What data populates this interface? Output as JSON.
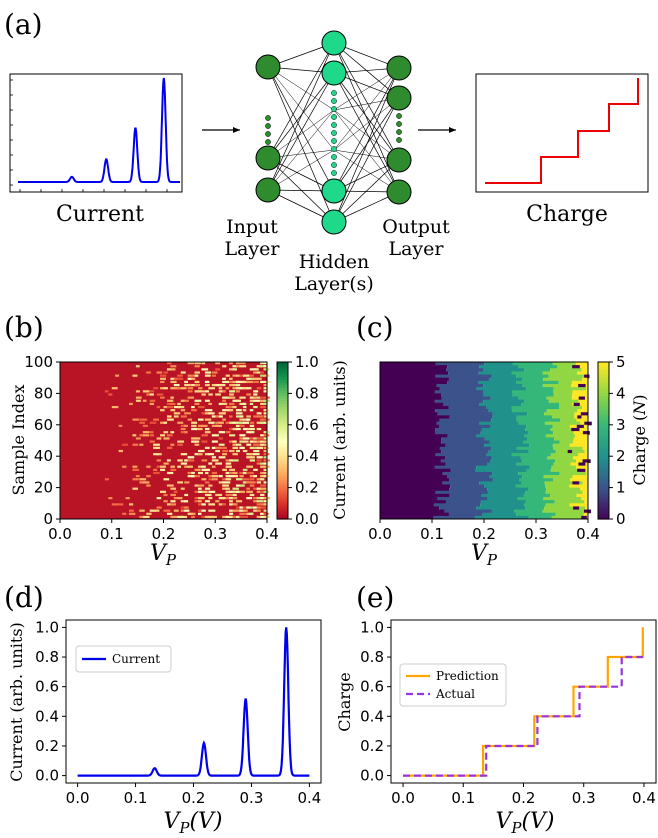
{
  "panel_a": {
    "tag": "(a)",
    "input_caption": "Current",
    "output_caption": "Charge",
    "input_layer_label": [
      "Input",
      "Layer"
    ],
    "hidden_layer_label": [
      "Hidden",
      "Layer(s)"
    ],
    "output_layer_label": [
      "Output",
      "Layer"
    ],
    "colors": {
      "current": "#0000ee",
      "charge": "#ee0000",
      "input_node": "#2e8b2e",
      "hidden_node": "#1fd98a"
    }
  },
  "chart_data": [
    {
      "id": "b",
      "tag": "(b)",
      "type": "heatmap",
      "xlabel": "V_P",
      "ylabel": "Sample Index",
      "xlim": [
        0.0,
        0.4
      ],
      "ylim": [
        0,
        100
      ],
      "xticks": [
        "0.0",
        "0.1",
        "0.2",
        "0.3",
        "0.4"
      ],
      "yticks": [
        "0",
        "20",
        "40",
        "60",
        "80",
        "100"
      ],
      "colorbar": {
        "label": "",
        "ticks": [
          "0.0",
          "0.2",
          "0.4",
          "0.6",
          "0.8",
          "1.0"
        ],
        "range": [
          0,
          1
        ],
        "colormap": "RdYlGn"
      }
    },
    {
      "id": "c",
      "tag": "(c)",
      "type": "heatmap",
      "xlabel": "V_P",
      "ylabel": "Current (arb. units)",
      "xlim": [
        0.0,
        0.4
      ],
      "ylim": [
        0,
        100
      ],
      "xticks": [
        "0.0",
        "0.1",
        "0.2",
        "0.3",
        "0.4"
      ],
      "colorbar": {
        "label": "Charge (N)",
        "ticks": [
          "0",
          "1",
          "2",
          "3",
          "4",
          "5"
        ],
        "range": [
          0,
          5
        ],
        "colormap": "viridis"
      }
    },
    {
      "id": "d",
      "tag": "(d)",
      "type": "line",
      "xlabel": "V_P(V)",
      "ylabel": "Current (arb. units)",
      "xlim": [
        -0.02,
        0.42
      ],
      "ylim": [
        -0.05,
        1.05
      ],
      "xticks": [
        "0.0",
        "0.1",
        "0.2",
        "0.3",
        "0.4"
      ],
      "yticks": [
        "0.0",
        "0.2",
        "0.4",
        "0.6",
        "0.8",
        "1.0"
      ],
      "legend": "top-left",
      "series": [
        {
          "name": "Current",
          "color": "#0000ee",
          "peaks": [
            {
              "x": 0.133,
              "height": 0.05
            },
            {
              "x": 0.218,
              "height": 0.22
            },
            {
              "x": 0.29,
              "height": 0.52
            },
            {
              "x": 0.36,
              "height": 1.0
            }
          ]
        }
      ]
    },
    {
      "id": "e",
      "tag": "(e)",
      "type": "line",
      "xlabel": "V_P(V)",
      "ylabel": "Charge",
      "xlim": [
        -0.02,
        0.42
      ],
      "ylim": [
        -0.05,
        1.05
      ],
      "xticks": [
        "0.0",
        "0.1",
        "0.2",
        "0.3",
        "0.4"
      ],
      "yticks": [
        "0.0",
        "0.2",
        "0.4",
        "0.6",
        "0.8",
        "1.0"
      ],
      "legend": "middle-left",
      "series": [
        {
          "name": "Prediction",
          "color": "#ffa500",
          "style": "solid",
          "x": [
            0.0,
            0.133,
            0.133,
            0.218,
            0.218,
            0.283,
            0.283,
            0.34,
            0.34,
            0.398,
            0.398
          ],
          "y": [
            0.0,
            0.0,
            0.2,
            0.2,
            0.4,
            0.4,
            0.6,
            0.6,
            0.8,
            0.8,
            1.0
          ]
        },
        {
          "name": "Actual",
          "color": "#9933dd",
          "style": "dashed",
          "x": [
            0.0,
            0.138,
            0.138,
            0.223,
            0.223,
            0.293,
            0.293,
            0.363,
            0.363,
            0.398
          ],
          "y": [
            0.0,
            0.0,
            0.2,
            0.2,
            0.4,
            0.4,
            0.6,
            0.6,
            0.8,
            0.8
          ]
        }
      ]
    }
  ]
}
